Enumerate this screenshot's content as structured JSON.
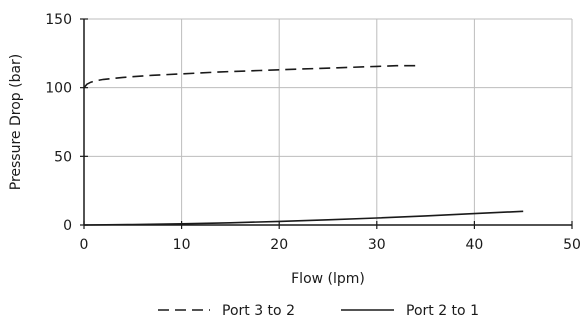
{
  "chart_data": {
    "type": "line",
    "xlabel": "Flow (lpm)",
    "ylabel": "Pressure Drop (bar)",
    "xlim": [
      0,
      50
    ],
    "ylim": [
      0,
      150
    ],
    "x_ticks": [
      0,
      10,
      20,
      30,
      40,
      50
    ],
    "y_ticks": [
      0,
      50,
      100,
      150
    ],
    "grid": true,
    "legend_position": "bottom",
    "series": [
      {
        "name": "Port 3 to 2",
        "line_style": "dashed",
        "color": "#1a1a1a",
        "x": [
          0,
          0.3,
          0.7,
          1.2,
          2,
          4,
          7,
          10,
          14,
          18,
          22,
          26,
          30,
          32,
          34
        ],
        "y": [
          100,
          102.5,
          104,
          105,
          106,
          107.5,
          109,
          110,
          111.5,
          112.5,
          113.5,
          114.5,
          115.5,
          116,
          116
        ]
      },
      {
        "name": "Port 2 to 1",
        "line_style": "solid",
        "color": "#1a1a1a",
        "x": [
          0,
          5,
          10,
          15,
          20,
          25,
          30,
          35,
          40,
          45
        ],
        "y": [
          0,
          0.4,
          0.9,
          1.6,
          2.6,
          3.8,
          5.1,
          6.6,
          8.3,
          10
        ]
      }
    ]
  }
}
